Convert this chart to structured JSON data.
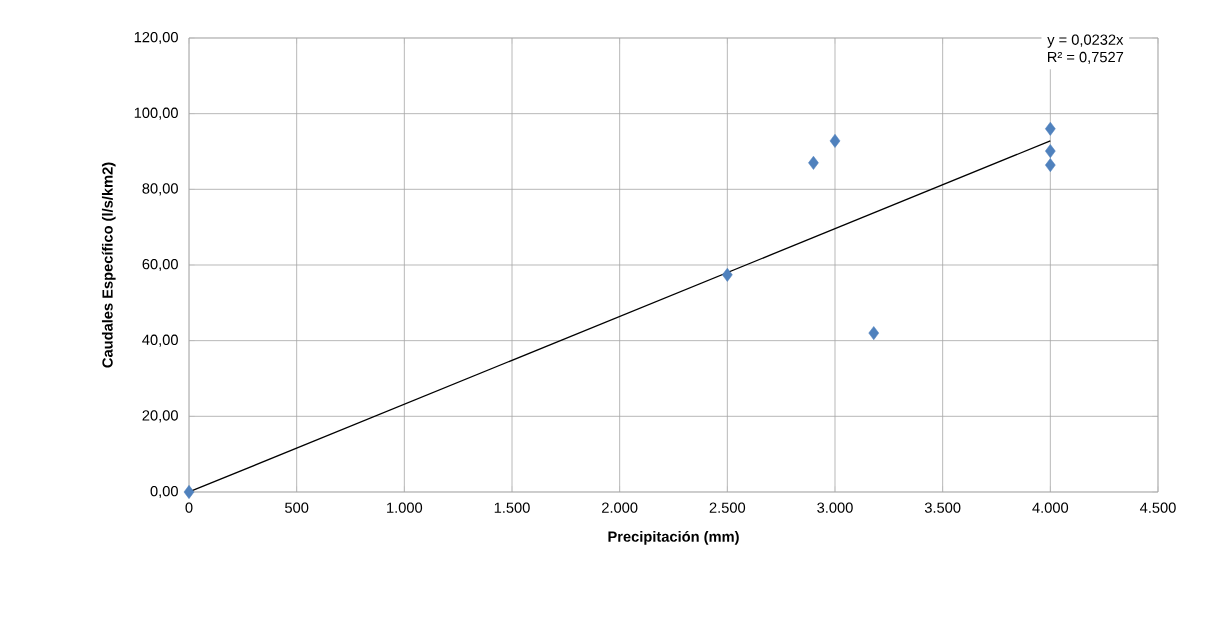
{
  "chart_data": {
    "type": "scatter",
    "xlabel": "Precipitación (mm)",
    "ylabel": "Caudales Específico  (l/s/km2)",
    "xlim": [
      0,
      4500
    ],
    "ylim": [
      0,
      120
    ],
    "xticks": [
      0,
      500,
      {
        "value": 1000,
        "label": "1.000"
      },
      {
        "value": 1500,
        "label": "1.500"
      },
      {
        "value": 2000,
        "label": "2.000"
      },
      {
        "value": 2500,
        "label": "2.500"
      },
      {
        "value": 3000,
        "label": "3.000"
      },
      {
        "value": 3500,
        "label": "3.500"
      },
      {
        "value": 4000,
        "label": "4.000"
      },
      {
        "value": 4500,
        "label": "4.500"
      }
    ],
    "yticks": [
      {
        "value": 0,
        "label": "0,00"
      },
      {
        "value": 20,
        "label": "20,00"
      },
      {
        "value": 40,
        "label": "40,00"
      },
      {
        "value": 60,
        "label": "60,00"
      },
      {
        "value": 80,
        "label": "80,00"
      },
      {
        "value": 100,
        "label": "100,00"
      },
      {
        "value": 120,
        "label": "120,00"
      }
    ],
    "grid": true,
    "marker": "diamond",
    "series": [
      {
        "color": "#4f81bd",
        "x": [
          0,
          2500,
          2900,
          3000,
          3180,
          4000,
          4000,
          4000
        ],
        "values": [
          0,
          57.4,
          87.0,
          92.8,
          42.0,
          96.0,
          90.1,
          86.4
        ]
      },
      {
        "type": "line",
        "color": "#000000",
        "marker": "none",
        "x": [
          0,
          4000
        ],
        "values": [
          0,
          92.8
        ]
      }
    ],
    "annotations": [
      "y = 0,0232x",
      "R² = 0,7527"
    ]
  }
}
